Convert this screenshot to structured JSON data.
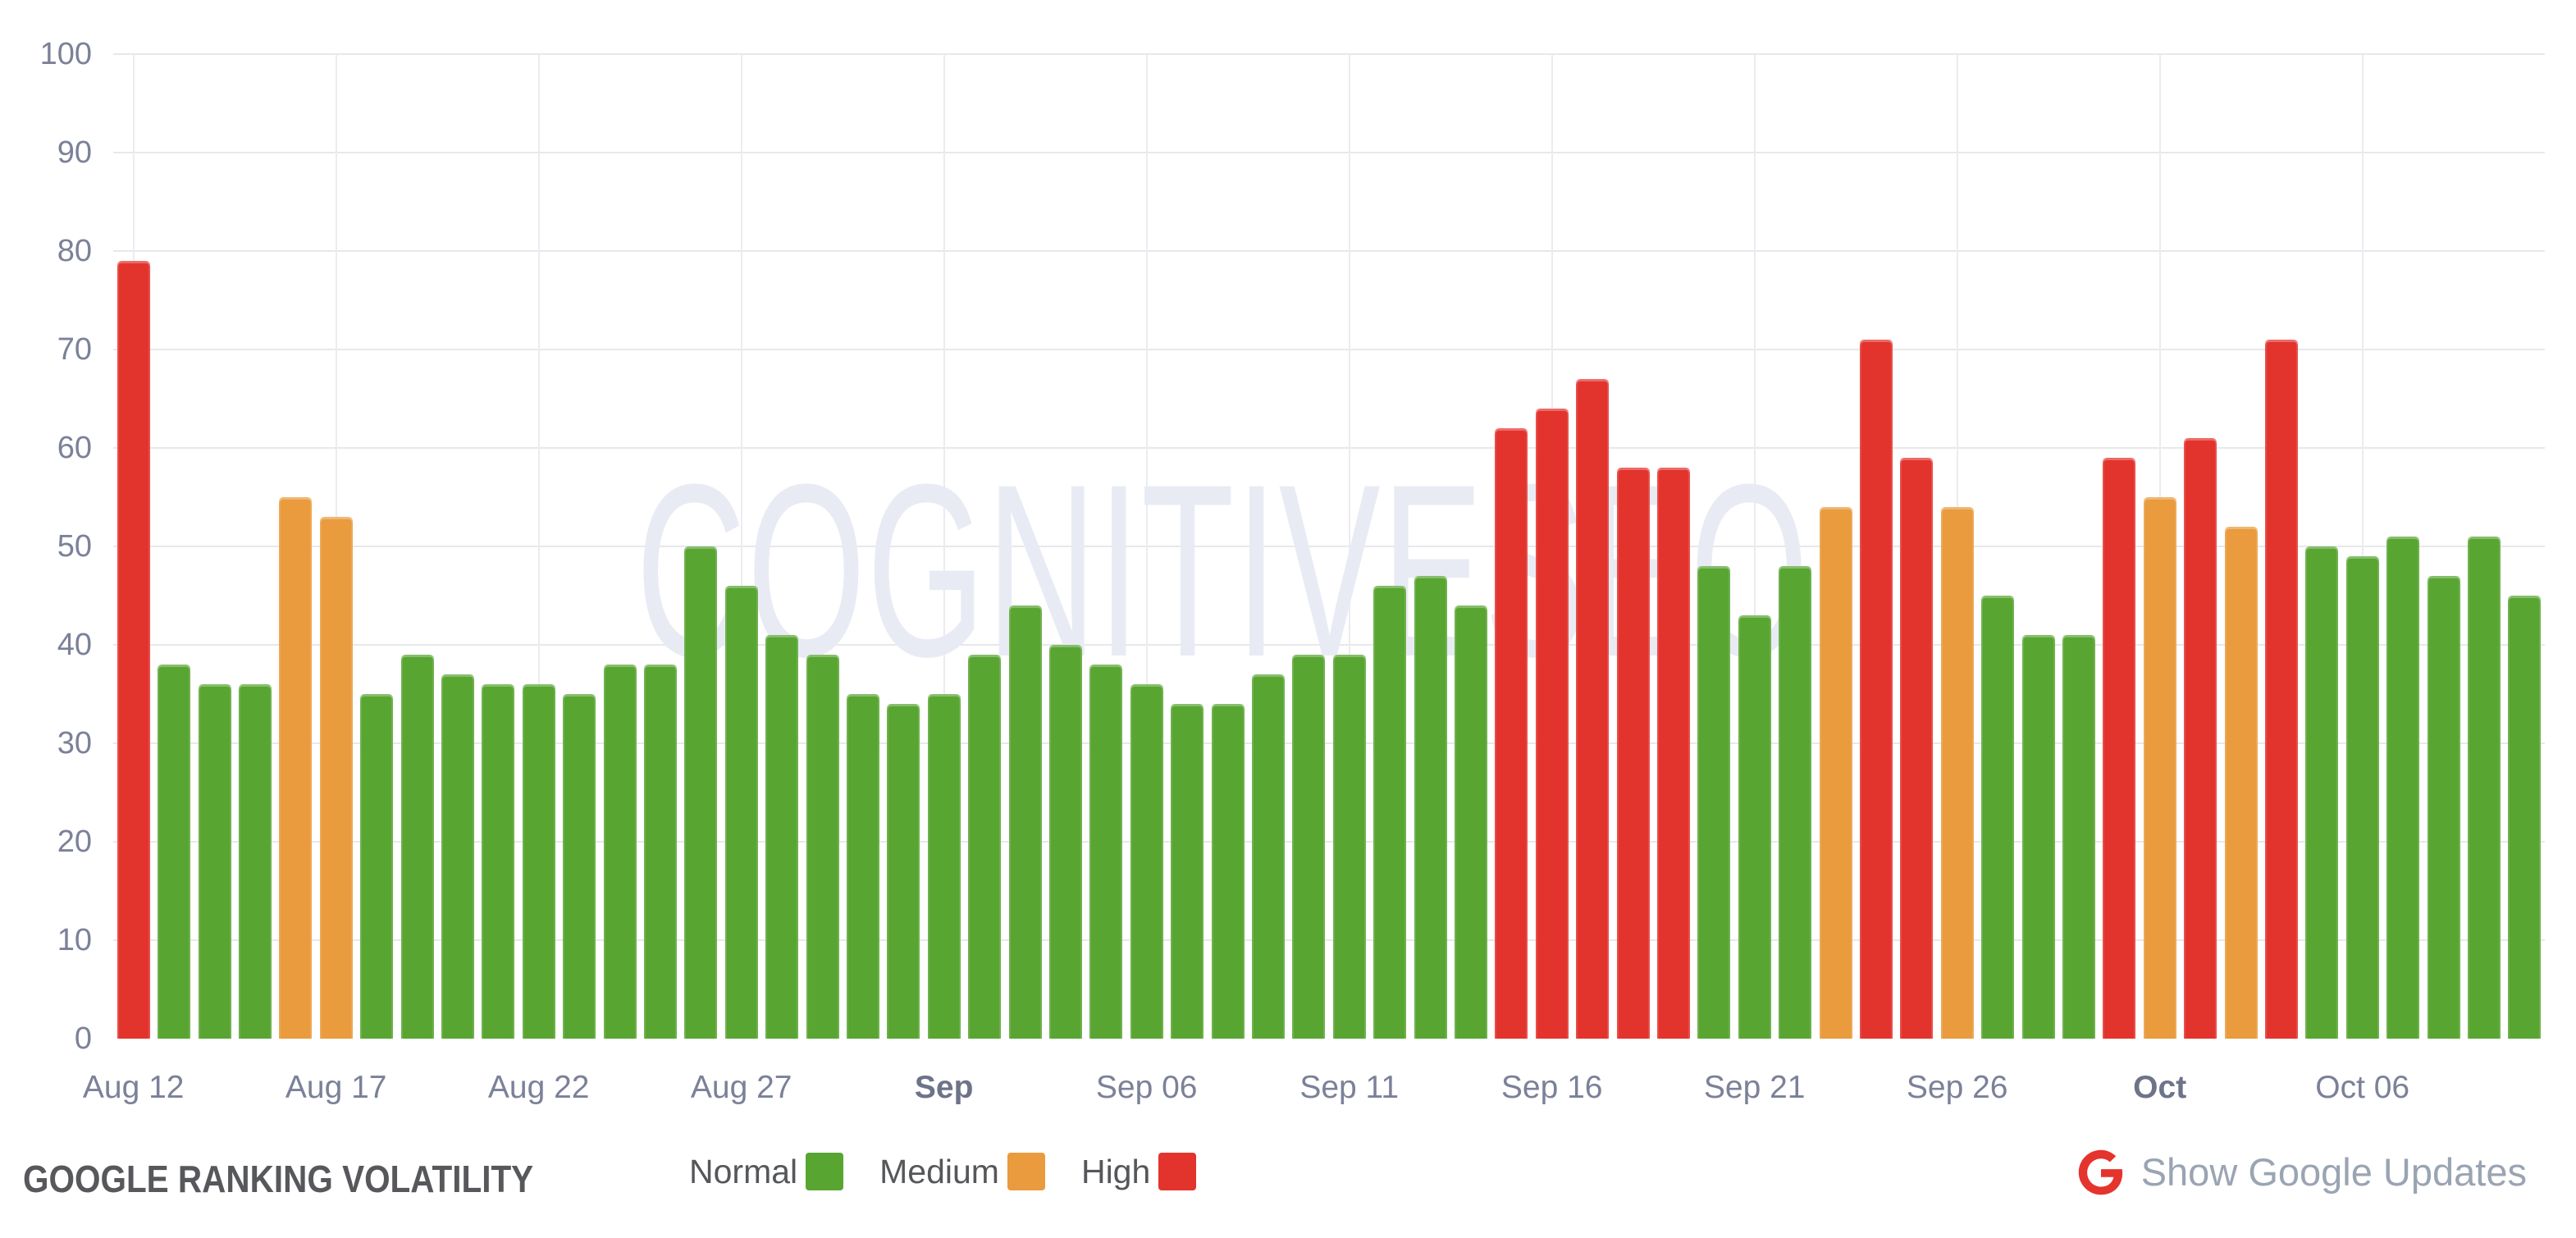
{
  "chart_data": {
    "type": "bar",
    "title": "GOOGLE RANKING VOLATILITY",
    "xlabel": "",
    "ylabel": "",
    "ylim": [
      0,
      100
    ],
    "yticks": [
      0,
      10,
      20,
      30,
      40,
      50,
      60,
      70,
      80,
      90,
      100
    ],
    "grid": true,
    "legend_position": "bottom",
    "watermark": "COGNITIVESEO",
    "colors": {
      "normal": "#58a532",
      "medium": "#e99b3d",
      "high": "#e3332d"
    },
    "x_axis_labels": [
      {
        "label": "Aug 12",
        "index": 0,
        "bold": false
      },
      {
        "label": "Aug 17",
        "index": 5,
        "bold": false
      },
      {
        "label": "Aug 22",
        "index": 10,
        "bold": false
      },
      {
        "label": "Aug 27",
        "index": 15,
        "bold": false
      },
      {
        "label": "Sep",
        "index": 20,
        "bold": true
      },
      {
        "label": "Sep 06",
        "index": 25,
        "bold": false
      },
      {
        "label": "Sep 11",
        "index": 30,
        "bold": false
      },
      {
        "label": "Sep 16",
        "index": 35,
        "bold": false
      },
      {
        "label": "Sep 21",
        "index": 40,
        "bold": false
      },
      {
        "label": "Sep 26",
        "index": 45,
        "bold": false
      },
      {
        "label": "Oct",
        "index": 50,
        "bold": true
      },
      {
        "label": "Oct 06",
        "index": 55,
        "bold": false
      }
    ],
    "points": [
      {
        "date": "Aug 12",
        "value": 79,
        "level": "high"
      },
      {
        "date": "Aug 13",
        "value": 38,
        "level": "normal"
      },
      {
        "date": "Aug 14",
        "value": 36,
        "level": "normal"
      },
      {
        "date": "Aug 15",
        "value": 36,
        "level": "normal"
      },
      {
        "date": "Aug 16",
        "value": 55,
        "level": "medium"
      },
      {
        "date": "Aug 17",
        "value": 53,
        "level": "medium"
      },
      {
        "date": "Aug 18",
        "value": 35,
        "level": "normal"
      },
      {
        "date": "Aug 19",
        "value": 39,
        "level": "normal"
      },
      {
        "date": "Aug 20",
        "value": 37,
        "level": "normal"
      },
      {
        "date": "Aug 21",
        "value": 36,
        "level": "normal"
      },
      {
        "date": "Aug 22",
        "value": 36,
        "level": "normal"
      },
      {
        "date": "Aug 23",
        "value": 35,
        "level": "normal"
      },
      {
        "date": "Aug 24",
        "value": 38,
        "level": "normal"
      },
      {
        "date": "Aug 25",
        "value": 38,
        "level": "normal"
      },
      {
        "date": "Aug 26",
        "value": 50,
        "level": "normal"
      },
      {
        "date": "Aug 27",
        "value": 46,
        "level": "normal"
      },
      {
        "date": "Aug 28",
        "value": 41,
        "level": "normal"
      },
      {
        "date": "Aug 29",
        "value": 39,
        "level": "normal"
      },
      {
        "date": "Aug 30",
        "value": 35,
        "level": "normal"
      },
      {
        "date": "Aug 31",
        "value": 34,
        "level": "normal"
      },
      {
        "date": "Sep 01",
        "value": 35,
        "level": "normal"
      },
      {
        "date": "Sep 02",
        "value": 39,
        "level": "normal"
      },
      {
        "date": "Sep 03",
        "value": 44,
        "level": "normal"
      },
      {
        "date": "Sep 04",
        "value": 40,
        "level": "normal"
      },
      {
        "date": "Sep 05",
        "value": 38,
        "level": "normal"
      },
      {
        "date": "Sep 06",
        "value": 36,
        "level": "normal"
      },
      {
        "date": "Sep 07",
        "value": 34,
        "level": "normal"
      },
      {
        "date": "Sep 08",
        "value": 34,
        "level": "normal"
      },
      {
        "date": "Sep 09",
        "value": 37,
        "level": "normal"
      },
      {
        "date": "Sep 10",
        "value": 39,
        "level": "normal"
      },
      {
        "date": "Sep 11",
        "value": 39,
        "level": "normal"
      },
      {
        "date": "Sep 12",
        "value": 46,
        "level": "normal"
      },
      {
        "date": "Sep 13",
        "value": 47,
        "level": "normal"
      },
      {
        "date": "Sep 14",
        "value": 44,
        "level": "normal"
      },
      {
        "date": "Sep 15",
        "value": 62,
        "level": "high"
      },
      {
        "date": "Sep 16",
        "value": 64,
        "level": "high"
      },
      {
        "date": "Sep 17",
        "value": 67,
        "level": "high"
      },
      {
        "date": "Sep 18",
        "value": 58,
        "level": "high"
      },
      {
        "date": "Sep 19",
        "value": 58,
        "level": "high"
      },
      {
        "date": "Sep 20",
        "value": 48,
        "level": "normal"
      },
      {
        "date": "Sep 21",
        "value": 43,
        "level": "normal"
      },
      {
        "date": "Sep 22",
        "value": 48,
        "level": "normal"
      },
      {
        "date": "Sep 23",
        "value": 54,
        "level": "medium"
      },
      {
        "date": "Sep 24",
        "value": 71,
        "level": "high"
      },
      {
        "date": "Sep 25",
        "value": 59,
        "level": "high"
      },
      {
        "date": "Sep 26",
        "value": 54,
        "level": "medium"
      },
      {
        "date": "Sep 27",
        "value": 45,
        "level": "normal"
      },
      {
        "date": "Sep 28",
        "value": 41,
        "level": "normal"
      },
      {
        "date": "Sep 29",
        "value": 41,
        "level": "normal"
      },
      {
        "date": "Sep 30",
        "value": 59,
        "level": "high"
      },
      {
        "date": "Oct 01",
        "value": 55,
        "level": "medium"
      },
      {
        "date": "Oct 02",
        "value": 61,
        "level": "high"
      },
      {
        "date": "Oct 03",
        "value": 52,
        "level": "medium"
      },
      {
        "date": "Oct 04",
        "value": 71,
        "level": "high"
      },
      {
        "date": "Oct 05",
        "value": 50,
        "level": "normal"
      },
      {
        "date": "Oct 06",
        "value": 49,
        "level": "normal"
      },
      {
        "date": "Oct 07",
        "value": 51,
        "level": "normal"
      },
      {
        "date": "Oct 08",
        "value": 47,
        "level": "normal"
      },
      {
        "date": "Oct 09",
        "value": 51,
        "level": "normal"
      },
      {
        "date": "Oct 10",
        "value": 45,
        "level": "normal"
      }
    ]
  },
  "footer": {
    "title": "GOOGLE RANKING VOLATILITY",
    "legend": [
      {
        "label": "Normal",
        "level": "normal"
      },
      {
        "label": "Medium",
        "level": "medium"
      },
      {
        "label": "High",
        "level": "high"
      }
    ],
    "google_updates_label": "Show Google Updates",
    "google_icon_color": "#e5332d"
  }
}
